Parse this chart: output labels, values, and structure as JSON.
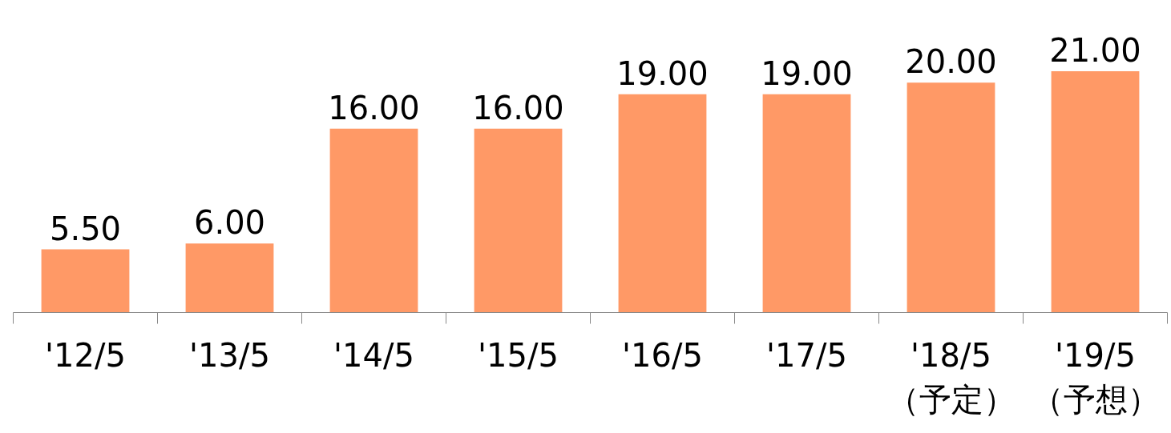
{
  "chart_data": {
    "type": "bar",
    "categories": [
      "'12/5",
      "'13/5",
      "'14/5",
      "'15/5",
      "'16/5",
      "'17/5",
      "'18/5\n（予定）",
      "'19/5\n（予想）"
    ],
    "values": [
      5.5,
      6,
      16,
      16,
      19,
      19,
      20,
      21
    ],
    "value_labels": [
      "5.50",
      "6.00",
      "16.00",
      "16.00",
      "19.00",
      "19.00",
      "20.00",
      "21.00"
    ],
    "color": "#ff9966"
  }
}
